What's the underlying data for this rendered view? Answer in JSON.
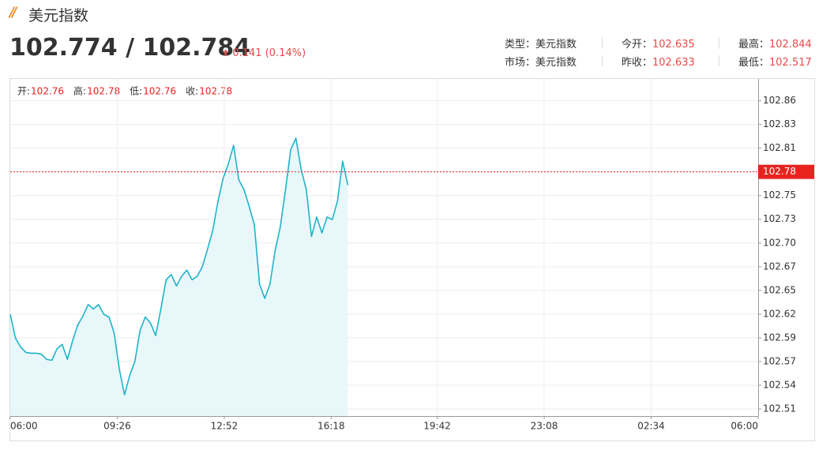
{
  "header": {
    "title": "美元指数"
  },
  "quote": {
    "price": "102.774 / 102.784",
    "change": "0.141",
    "change_pct": "(0.14%)"
  },
  "info": {
    "rows": [
      [
        {
          "label": "类型：",
          "value": "美元指数"
        },
        {
          "label": "今开：",
          "value": "102.635"
        },
        {
          "label": "最高：",
          "value": "102.844"
        }
      ],
      [
        {
          "label": "市场：",
          "value": "美元指数"
        },
        {
          "label": "昨收：",
          "value": "102.633"
        },
        {
          "label": "最低：",
          "value": "102.517"
        }
      ]
    ]
  },
  "ohlc": [
    {
      "label": "开:",
      "value": "102.76"
    },
    {
      "label": "高:",
      "value": "102.78"
    },
    {
      "label": "低:",
      "value": "102.76"
    },
    {
      "label": "收:",
      "value": "102.78"
    }
  ],
  "chart_data": {
    "type": "line",
    "color": "#1eb3c9",
    "fill_color": "#e8f8fa",
    "grid": true,
    "x": [
      "06:00",
      "06:10",
      "06:20",
      "06:30",
      "06:40",
      "06:50",
      "07:00",
      "07:10",
      "07:20",
      "07:30",
      "07:40",
      "07:50",
      "08:00",
      "08:10",
      "08:20",
      "08:30",
      "08:40",
      "08:50",
      "09:00",
      "09:10",
      "09:20",
      "09:30",
      "09:40",
      "09:50",
      "10:00",
      "10:10",
      "10:20",
      "10:30",
      "10:40",
      "10:50",
      "11:00",
      "11:10",
      "11:20",
      "11:30",
      "11:40",
      "11:50",
      "12:00",
      "12:10",
      "12:20",
      "12:30",
      "12:40",
      "12:50",
      "13:00",
      "13:10",
      "13:20",
      "13:30",
      "13:40",
      "13:50",
      "14:00",
      "14:10",
      "14:20",
      "14:30",
      "14:40",
      "14:50",
      "15:00",
      "15:10",
      "15:20",
      "15:30",
      "15:40",
      "15:50",
      "16:00",
      "16:10",
      "16:20",
      "16:30",
      "16:40",
      "16:50"
    ],
    "values": [
      102.619,
      102.592,
      102.582,
      102.576,
      102.575,
      102.575,
      102.574,
      102.568,
      102.567,
      102.58,
      102.585,
      102.568,
      102.589,
      102.607,
      102.617,
      102.63,
      102.625,
      102.63,
      102.619,
      102.616,
      102.598,
      102.557,
      102.528,
      102.55,
      102.566,
      102.601,
      102.616,
      102.609,
      102.595,
      102.625,
      102.658,
      102.664,
      102.651,
      102.662,
      102.669,
      102.658,
      102.662,
      102.673,
      102.693,
      102.714,
      102.747,
      102.773,
      102.789,
      102.81,
      102.771,
      102.76,
      102.741,
      102.72,
      102.653,
      102.637,
      102.653,
      102.691,
      102.718,
      102.76,
      102.805,
      102.818,
      102.783,
      102.76,
      102.707,
      102.729,
      102.711,
      102.729,
      102.726,
      102.747,
      102.792,
      102.765
    ],
    "ylim": [
      102.504,
      102.885
    ],
    "yticks": [
      {
        "value": 102.512,
        "label": "102.51"
      },
      {
        "value": 102.5388,
        "label": "102.54"
      },
      {
        "value": 102.5656,
        "label": "102.57"
      },
      {
        "value": 102.5924,
        "label": "102.59"
      },
      {
        "value": 102.6192,
        "label": "102.62"
      },
      {
        "value": 102.646,
        "label": "102.65"
      },
      {
        "value": 102.6728,
        "label": "102.67"
      },
      {
        "value": 102.6996,
        "label": "102.70"
      },
      {
        "value": 102.7264,
        "label": "102.73"
      },
      {
        "value": 102.7532,
        "label": "102.75"
      },
      {
        "value": 102.78,
        "label": "102.78"
      },
      {
        "value": 102.8068,
        "label": "102.81"
      },
      {
        "value": 102.8336,
        "label": "102.83"
      },
      {
        "value": 102.8604,
        "label": "102.86"
      }
    ],
    "xticks": [
      "06:00",
      "09:26",
      "12:52",
      "16:18",
      "19:42",
      "23:08",
      "02:34",
      "06:00"
    ],
    "price_line": 102.78,
    "price_line_color": "#e8231f"
  }
}
